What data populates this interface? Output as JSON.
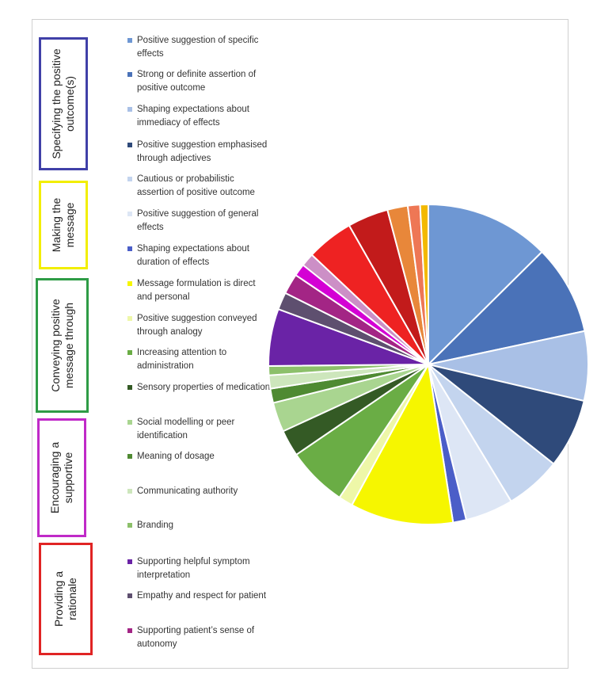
{
  "groups": [
    {
      "label": "Specifying the positive outcome(s)",
      "color": "#4040a8"
    },
    {
      "label": "Making the message",
      "color": "#f2ee00"
    },
    {
      "label": "Conveying positive message through",
      "color": "#2e9c46"
    },
    {
      "label": "Encouraging a supportive",
      "color": "#c02ac8"
    },
    {
      "label": "Providing a rationale",
      "color": "#e02424"
    }
  ],
  "legend": [
    {
      "label": "Positive suggestion of specific effects",
      "color": "#6e97d3"
    },
    {
      "label": "Strong or definite assertion of positive outcome",
      "color": "#4a72b8"
    },
    {
      "label": "Shaping expectations about immediacy of effects",
      "color": "#a9c0e6"
    },
    {
      "label": "Positive suggestion emphasised through adjectives",
      "color": "#2f4a7a"
    },
    {
      "label": "Cautious or probabilistic assertion of positive outcome",
      "color": "#c3d4ee"
    },
    {
      "label": "Positive suggestion of general effects",
      "color": "#dde6f5"
    },
    {
      "label": "Shaping expectations about duration of effects",
      "color": "#4b5ec8"
    },
    {
      "label": "Message formulation is direct and personal",
      "color": "#f6f600"
    },
    {
      "label": "Positive suggestion conveyed through analogy",
      "color": "#eef7a8"
    },
    {
      "label": "Increasing attention to administration",
      "color": "#6aad45"
    },
    {
      "label": "Sensory properties  of medication",
      "color": "#345a25"
    },
    {
      "label": "Social modelling or peer identification",
      "color": "#a9d590"
    },
    {
      "label": "Meaning of dosage",
      "color": "#4f8a32"
    },
    {
      "label": "Communicating authority",
      "color": "#cde6bc"
    },
    {
      "label": "Branding",
      "color": "#8cc06a"
    },
    {
      "label": "Supporting helpful symptom interpretation",
      "color": "#6a23a6"
    },
    {
      "label": "Empathy and respect for patient",
      "color": "#5e4f6f"
    },
    {
      "label": "Supporting patient’s sense of autonomy",
      "color": "#a32585"
    }
  ],
  "chart_data": {
    "type": "pie",
    "title": "",
    "legend_position": "left",
    "slices": [
      {
        "label": "Positive suggestion of specific effects",
        "value": 12.2,
        "color": "#6e97d3"
      },
      {
        "label": "Strong or definite assertion of positive outcome",
        "value": 8.8,
        "color": "#4a72b8"
      },
      {
        "label": "Shaping expectations about immediacy of effects",
        "value": 6.8,
        "color": "#a9c0e6"
      },
      {
        "label": "Positive suggestion emphasised through adjectives",
        "value": 6.8,
        "color": "#2f4a7a"
      },
      {
        "label": "Cautious or probabilistic assertion of positive outcome",
        "value": 5.5,
        "color": "#c3d4ee"
      },
      {
        "label": "Positive suggestion of general effects",
        "value": 4.7,
        "color": "#dde6f5"
      },
      {
        "label": "Shaping expectations about duration of effects",
        "value": 1.3,
        "color": "#4b5ec8"
      },
      {
        "label": "Message formulation is direct and personal",
        "value": 10.1,
        "color": "#f6f600"
      },
      {
        "label": "Positive suggestion conveyed through analogy",
        "value": 1.4,
        "color": "#eef7a8"
      },
      {
        "label": "Increasing attention to administration",
        "value": 5.9,
        "color": "#6aad45"
      },
      {
        "label": "Sensory properties  of medication",
        "value": 2.6,
        "color": "#345a25"
      },
      {
        "label": "Social modelling or peer identification",
        "value": 2.9,
        "color": "#a9d590"
      },
      {
        "label": "Meaning of dosage",
        "value": 1.4,
        "color": "#4f8a32"
      },
      {
        "label": "Communicating authority",
        "value": 1.3,
        "color": "#cde6bc"
      },
      {
        "label": "Branding",
        "value": 0.9,
        "color": "#8cc06a"
      },
      {
        "label": "Supporting helpful symptom interpretation",
        "value": 5.6,
        "color": "#6a23a6"
      },
      {
        "label": "Empathy and respect for patient",
        "value": 1.7,
        "color": "#5e4f6f"
      },
      {
        "label": "Supporting patient’s sense of autonomy",
        "value": 2.0,
        "color": "#a32585"
      },
      {
        "label": "",
        "value": 1.2,
        "color": "#d400d4"
      },
      {
        "label": "",
        "value": 1.3,
        "color": "#cc8fc6"
      },
      {
        "label": "",
        "value": 4.6,
        "color": "#ee2222"
      },
      {
        "label": "",
        "value": 4.0,
        "color": "#c21b1b"
      },
      {
        "label": "",
        "value": 2.0,
        "color": "#e8873a"
      },
      {
        "label": "",
        "value": 1.2,
        "color": "#ee7755"
      },
      {
        "label": "",
        "value": 0.8,
        "color": "#f3b900"
      }
    ]
  }
}
